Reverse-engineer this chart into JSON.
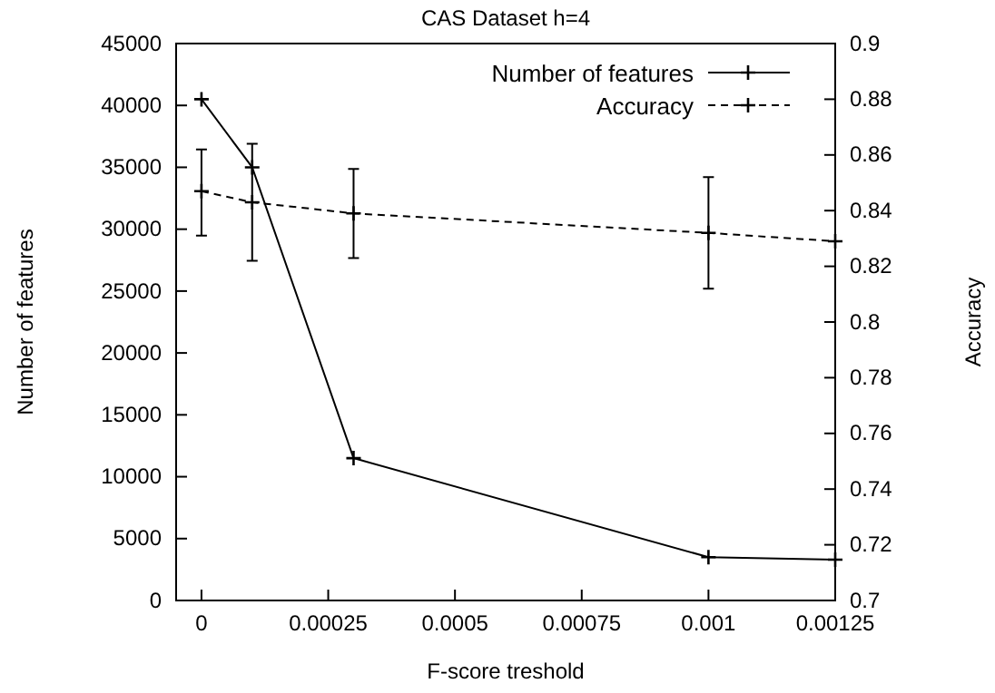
{
  "chart_data": {
    "type": "line",
    "title": "CAS Dataset h=4",
    "xlabel": "F-score treshold",
    "ylabel": "Number of features",
    "y2label": "Accuracy",
    "xlim": [
      -5e-05,
      0.00125
    ],
    "xticks": [
      0,
      0.00025,
      0.0005,
      0.00075,
      0.001,
      0.00125
    ],
    "ylim": [
      0,
      45000
    ],
    "yticks": [
      0,
      5000,
      10000,
      15000,
      20000,
      25000,
      30000,
      35000,
      40000,
      45000
    ],
    "y2lim": [
      0.7,
      0.9
    ],
    "y2ticks": [
      0.7,
      0.72,
      0.74,
      0.76,
      0.78,
      0.8,
      0.82,
      0.84,
      0.86,
      0.88,
      0.9
    ],
    "legend": "top right",
    "grid": false,
    "series": [
      {
        "name": "Number of features",
        "color": "#000000",
        "marker": "cross",
        "line_style": "solid",
        "x": [
          0,
          0.0001,
          0.0003,
          0.001,
          0.00125
        ],
        "values": [
          40500,
          35000,
          11500,
          3500,
          3300
        ]
      },
      {
        "name": "Accuracy",
        "color": "#000000",
        "marker": "cross",
        "line_style": "dashed",
        "axis": "y2",
        "x": [
          0,
          0.0001,
          0.0003,
          0.001,
          0.00125
        ],
        "values": [
          0.847,
          0.843,
          0.839,
          0.832,
          0.829
        ],
        "errors": [
          [
            0.831,
            0.862
          ],
          [
            0.822,
            0.864
          ],
          [
            0.823,
            0.855
          ],
          [
            0.812,
            0.852
          ],
          null
        ]
      }
    ]
  }
}
